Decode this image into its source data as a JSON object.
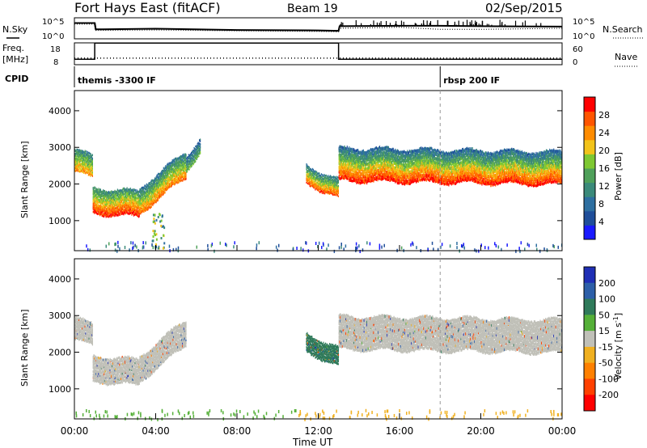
{
  "header": {
    "station": "Fort Hays East (fitACF)",
    "beam": "Beam 19",
    "date": "02/Sep/2015"
  },
  "chart_data": [
    {
      "type": "line",
      "panel": "nsky-nsearch",
      "left_label": "N.Sky",
      "right_label": "N.Search",
      "left_ticks": [
        "10^5",
        "10^0"
      ],
      "right_ticks": [
        "10^5",
        "10^0"
      ],
      "x_hours": [
        0,
        1,
        1.05,
        4,
        8,
        12,
        13,
        13.05,
        16,
        18,
        20,
        24
      ],
      "nsky_level": [
        0.75,
        0.75,
        0.45,
        0.48,
        0.42,
        0.4,
        0.38,
        0.6,
        0.62,
        0.62,
        0.6,
        0.58
      ],
      "nsearch_level": [
        0.7,
        0.7,
        0.4,
        0.42,
        0.38,
        0.35,
        0.33,
        0.5,
        0.55,
        0.45,
        0.45,
        0.5
      ]
    },
    {
      "type": "line",
      "panel": "freq-nave",
      "left_label_line1": "Freq.",
      "left_label_line2": "[MHz]",
      "right_label": "Nave",
      "left_ticks": [
        18,
        8
      ],
      "right_ticks": [
        60,
        0
      ],
      "freq_segments": [
        {
          "start_hour": 0.0,
          "end_hour": 1.0,
          "freq_mhz": 10.5
        },
        {
          "start_hour": 1.0,
          "end_hour": 13.0,
          "freq_mhz": 17.9
        },
        {
          "start_hour": 13.0,
          "end_hour": 24.0,
          "freq_mhz": 10.5
        }
      ],
      "nave_value": 18
    },
    {
      "type": "table",
      "panel": "cpid",
      "label": "CPID",
      "entries": [
        {
          "start_hour": 0.0,
          "text": "themis -3300 IF"
        },
        {
          "start_hour": 18.0,
          "text": "rbsp 200 IF"
        }
      ]
    },
    {
      "type": "heatmap",
      "panel": "power",
      "ylabel": "Slant Range [km]",
      "xlabel": "",
      "ylim": [
        180,
        4550
      ],
      "xlim_hours": [
        0,
        24
      ],
      "yticks": [
        1000,
        2000,
        3000,
        4000
      ],
      "colorbar_label": "Power [dB]",
      "colorbar_ticks": [
        4,
        8,
        12,
        16,
        20,
        24,
        28
      ],
      "colorbar_range": [
        0,
        32
      ],
      "bands": [
        {
          "t0": 0.0,
          "t1": 0.9,
          "r_mid_start": 2700,
          "r_mid_end": 2500,
          "width": 600,
          "value_low": 10,
          "value_high": 24
        },
        {
          "t0": 0.9,
          "t1": 3.2,
          "r_mid_start": 1600,
          "r_mid_end": 1500,
          "width": 700,
          "value_low": 10,
          "value_high": 30
        },
        {
          "t0": 3.2,
          "t1": 5.5,
          "r_mid_start": 1600,
          "r_mid_end": 2600,
          "width": 700,
          "value_low": 8,
          "value_high": 26
        },
        {
          "t0": 5.5,
          "t1": 6.2,
          "r_mid_start": 2600,
          "r_mid_end": 3100,
          "width": 400,
          "value_low": 6,
          "value_high": 16
        },
        {
          "t0": 11.4,
          "t1": 13.0,
          "r_mid_start": 2300,
          "r_mid_end": 1900,
          "width": 500,
          "value_low": 8,
          "value_high": 28
        },
        {
          "t0": 13.0,
          "t1": 24.0,
          "r_mid_start": 2600,
          "r_mid_end": 2500,
          "width": 900,
          "value_low": 6,
          "value_high": 30
        }
      ]
    },
    {
      "type": "heatmap",
      "panel": "velocity",
      "ylabel": "Slant Range [km]",
      "xlabel": "Time UT",
      "ylim": [
        180,
        4550
      ],
      "xlim_hours": [
        0,
        24
      ],
      "yticks": [
        1000,
        2000,
        3000,
        4000
      ],
      "xticks": [
        "00:00",
        "04:00",
        "08:00",
        "12:00",
        "16:00",
        "20:00",
        "00:00"
      ],
      "colorbar_label": "Velocity [m s",
      "colorbar_label_sup": "-1",
      "colorbar_label_end": "]",
      "colorbar_ticks": [
        200,
        100,
        50,
        15,
        -15,
        -50,
        -100,
        -200
      ],
      "bands": [
        {
          "t0": 0.0,
          "t1": 0.9,
          "r_mid_start": 2700,
          "r_mid_end": 2500,
          "width": 600,
          "velocity": 0
        },
        {
          "t0": 0.9,
          "t1": 3.2,
          "r_mid_start": 1600,
          "r_mid_end": 1500,
          "width": 700,
          "velocity": 0
        },
        {
          "t0": 3.2,
          "t1": 5.5,
          "r_mid_start": 1600,
          "r_mid_end": 2600,
          "width": 700,
          "velocity": 0
        },
        {
          "t0": 11.4,
          "t1": 13.0,
          "r_mid_start": 2300,
          "r_mid_end": 1900,
          "width": 500,
          "velocity": 40
        },
        {
          "t0": 13.0,
          "t1": 24.0,
          "r_mid_start": 2600,
          "r_mid_end": 2500,
          "width": 900,
          "velocity": 0
        }
      ],
      "ground_scatter_velocity": -30
    }
  ],
  "colors": {
    "power_scale": [
      "#1a1aff",
      "#1f4e9a",
      "#2e6fa0",
      "#3b8a7a",
      "#4fa05a",
      "#7ec832",
      "#f2c31a",
      "#ff8c00",
      "#ff5500",
      "#ff0000"
    ],
    "velocity_scale": [
      "#1f2fb5",
      "#2d5fa8",
      "#2f7a5a",
      "#55b038",
      "#c0c0b8",
      "#f0b020",
      "#ff8000",
      "#ff4000",
      "#ff0000"
    ],
    "ground_scatter": "#c6c6bf"
  }
}
